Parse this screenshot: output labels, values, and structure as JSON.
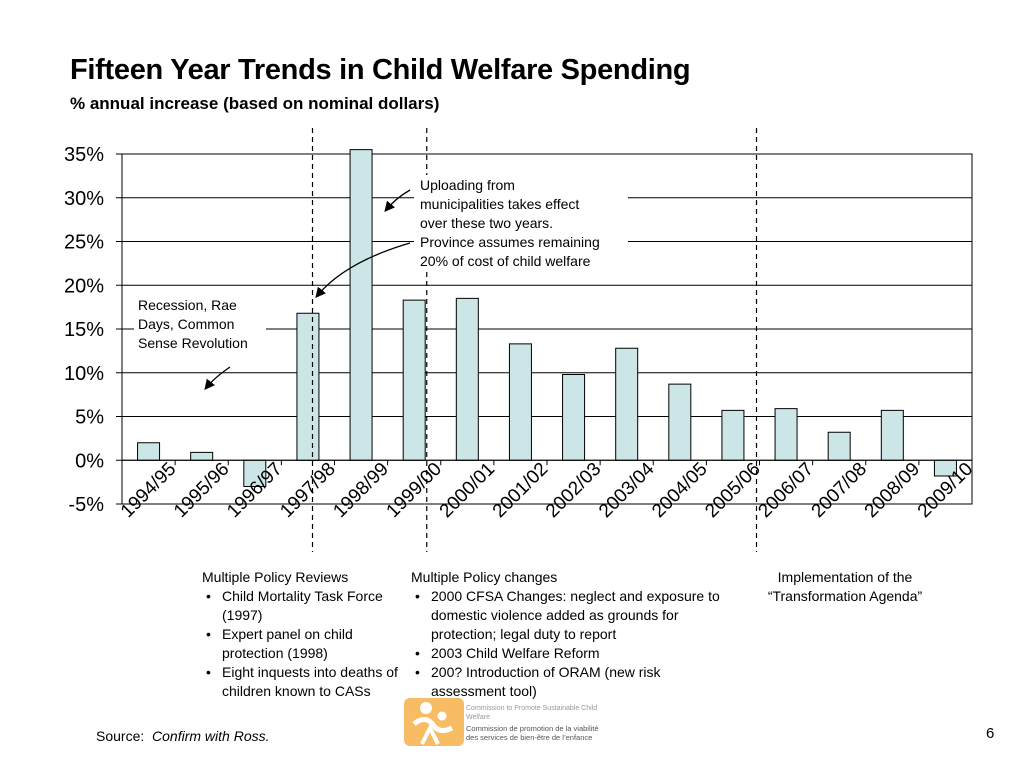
{
  "title": "Fifteen Year Trends in Child Welfare Spending",
  "subtitle": "% annual increase (based on nominal dollars)",
  "chart_data": {
    "type": "bar",
    "title": "Fifteen Year Trends in Child Welfare Spending",
    "ylabel": "% annual increase",
    "ylim": [
      -5,
      35
    ],
    "yticks": [
      35,
      30,
      25,
      20,
      15,
      10,
      5,
      0,
      -5
    ],
    "ytick_labels": [
      "35%",
      "30%",
      "25%",
      "20%",
      "15%",
      "10%",
      "5%",
      "0%",
      "-5%"
    ],
    "grid": true,
    "categories": [
      "1994/95",
      "1995/96",
      "1996/97",
      "1997/98",
      "1998/99",
      "1999/00",
      "2000/01",
      "2001/02",
      "2002/03",
      "2003/04",
      "2004/05",
      "2005/06",
      "2006/07",
      "2007/08",
      "2008/09",
      "2009/10"
    ],
    "values": [
      2.0,
      0.9,
      -3.0,
      16.8,
      35.5,
      18.3,
      18.5,
      13.3,
      9.8,
      12.8,
      8.7,
      5.7,
      5.9,
      3.2,
      5.7,
      -1.8
    ],
    "bar_color": "#cce6e8",
    "bar_stroke": "#000000",
    "period_dividers_after": [
      "1997/98",
      "1999/00",
      "2005/06"
    ],
    "annotations": {
      "recession": "Recession, Rae Days, Common Sense Revolution",
      "uploading": "Uploading from municipalities takes effect over these two years. Province assumes remaining 20% of cost of child welfare"
    }
  },
  "annotation_lines": {
    "recession": [
      "Recession, Rae",
      "Days, Common",
      "Sense Revolution"
    ],
    "uploading": [
      "Uploading from",
      "municipalities takes effect",
      "over these two years.",
      "Province assumes remaining",
      "20% of cost of child welfare"
    ]
  },
  "notes": {
    "reviews": {
      "heading": "Multiple Policy Reviews",
      "items": [
        "Child Mortality Task Force (1997)",
        "Expert panel on child protection (1998)",
        "Eight inquests into deaths of children known to CASs"
      ]
    },
    "changes": {
      "heading": "Multiple Policy changes",
      "items": [
        "2000 CFSA Changes:  neglect and exposure to domestic violence added as grounds for protection; legal duty to report",
        "2003 Child Welfare Reform",
        "200? Introduction of ORAM (new risk assessment tool)"
      ]
    },
    "transformation": {
      "line1": "Implementation of  the",
      "line2": "“Transformation Agenda”"
    }
  },
  "source": {
    "label": "Source:",
    "value": "Confirm with Ross."
  },
  "page_number": "6",
  "logo": {
    "title": "Commission to Promote Sustainable Child Welfare",
    "line1": "Commission de promotion de la viabilité",
    "line2": "des services de bien-être de l’enfance"
  },
  "colors": {
    "bar_fill": "#cce6e8",
    "logo_orange": "#f39c1f"
  }
}
